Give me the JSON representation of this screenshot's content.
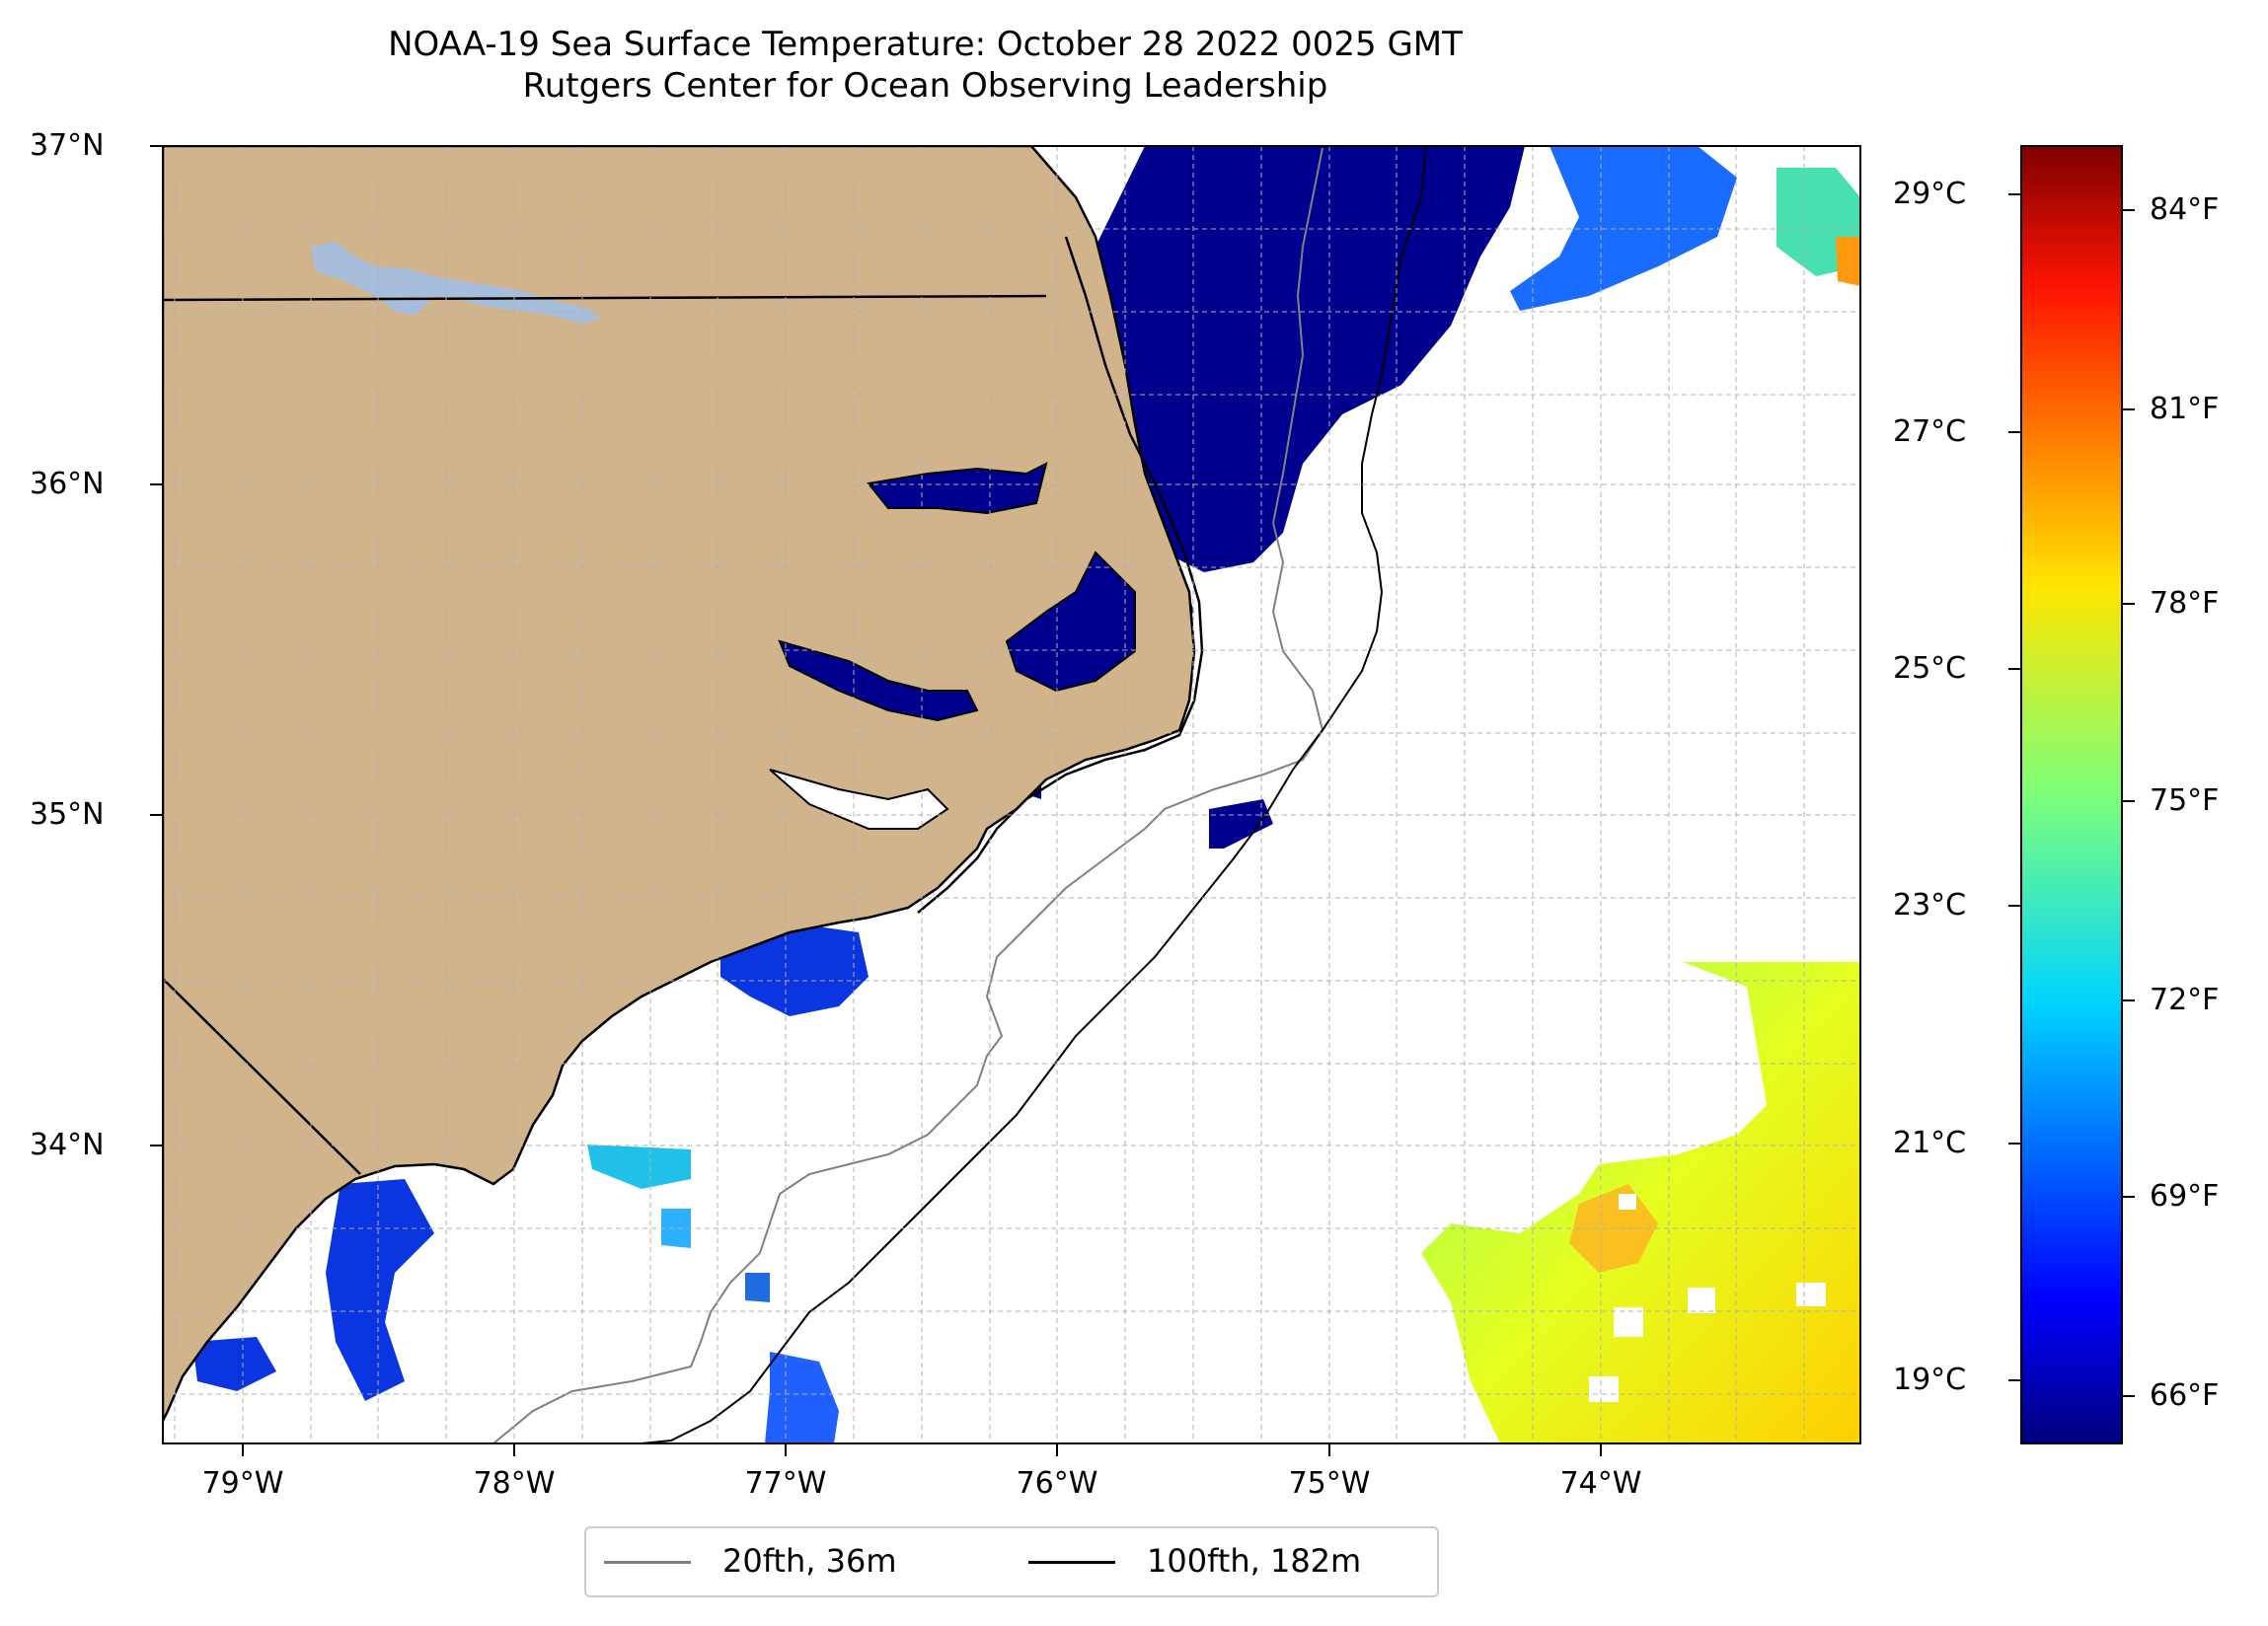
{
  "title_line1": "NOAA-19 Sea Surface Temperature: October 28 2022 0025 GMT",
  "title_line2": "Rutgers Center for Ocean Observing Leadership",
  "map": {
    "lat_ticks": [
      "37°N",
      "36°N",
      "35°N",
      "34°N"
    ],
    "lon_ticks": [
      "79°W",
      "78°W",
      "77°W",
      "76°W",
      "75°W",
      "74°W"
    ],
    "lon_range": [
      -79.3,
      -73.1
    ],
    "lat_range": [
      33.1,
      37.0
    ],
    "colors": {
      "land": "#d2b48c",
      "lake": "#a6bddb",
      "coast": "#000000",
      "isobath_20fth": "#808080",
      "isobath_100fth": "#000000",
      "grid": "#b0b0b0"
    }
  },
  "colorbar": {
    "celsius_ticks": [
      "29°C",
      "27°C",
      "25°C",
      "23°C",
      "21°C",
      "19°C"
    ],
    "fahrenheit_ticks": [
      "84°F",
      "81°F",
      "78°F",
      "75°F",
      "72°F",
      "69°F",
      "66°F"
    ],
    "colormap": "jet",
    "range_c": [
      18.5,
      29.4
    ]
  },
  "legend": {
    "entries": [
      {
        "label": "20fth, 36m",
        "color": "#808080"
      },
      {
        "label": "100fth, 182m",
        "color": "#000000"
      }
    ]
  }
}
